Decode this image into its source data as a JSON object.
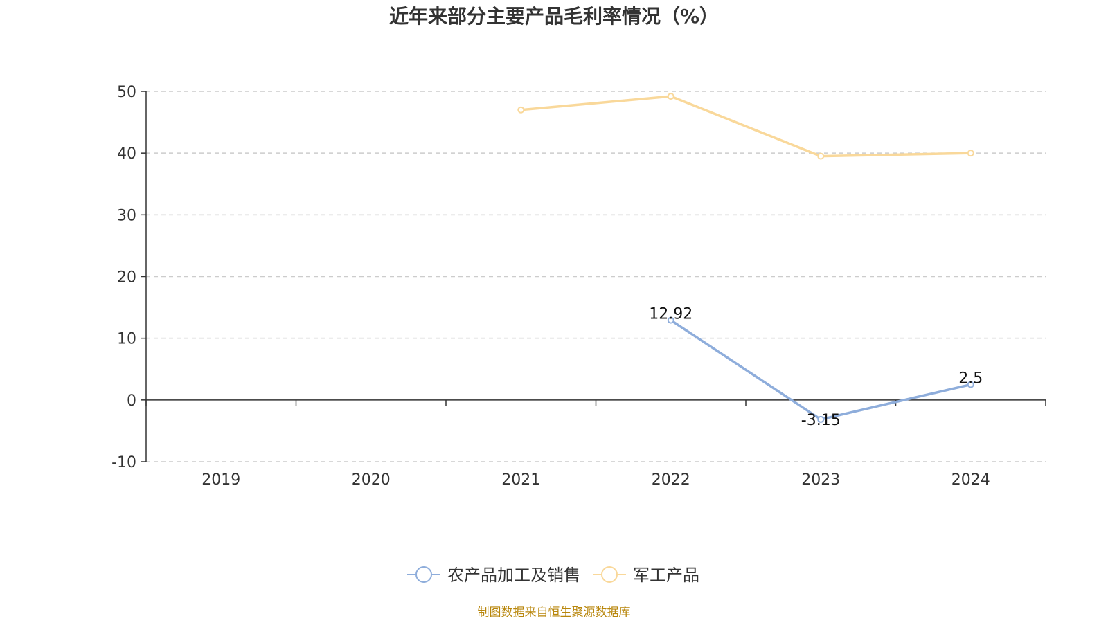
{
  "chart_data": {
    "type": "line",
    "title": "近年来部分主要产品毛利率情况（%）",
    "categories": [
      "2019",
      "2020",
      "2021",
      "2022",
      "2023",
      "2024"
    ],
    "ylim": [
      -10,
      50
    ],
    "yticks": [
      -10,
      0,
      10,
      20,
      30,
      40,
      50
    ],
    "grid": true,
    "legend_position": "bottom-center",
    "series": [
      {
        "name": "农产品加工及销售",
        "color": "#8eaddb",
        "values": [
          null,
          null,
          null,
          12.92,
          -3.15,
          2.5
        ],
        "labels": [
          "",
          "",
          "",
          "12.92",
          "-3.15",
          "2.5"
        ]
      },
      {
        "name": "军工产品",
        "color": "#f9d89a",
        "values": [
          null,
          null,
          47.0,
          49.2,
          39.5,
          40.0
        ],
        "labels": [
          "",
          "",
          "",
          "",
          "",
          ""
        ]
      }
    ]
  },
  "source": "制图数据来自恒生聚源数据库"
}
